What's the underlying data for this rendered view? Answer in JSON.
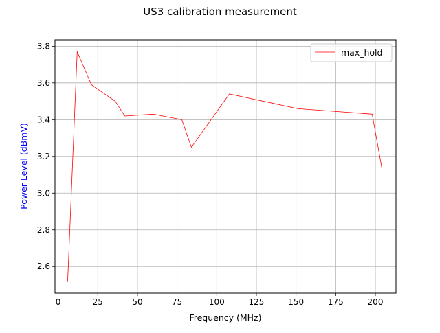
{
  "chart_data": {
    "type": "line",
    "title": "US3 calibration measurement",
    "xlabel": "Frequency (MHz)",
    "ylabel": "Power Level (dBmV)",
    "xlim": [
      -2,
      213
    ],
    "ylim": [
      2.455,
      3.835
    ],
    "xticks": [
      0,
      25,
      50,
      75,
      100,
      125,
      150,
      175,
      200
    ],
    "xtick_labels": [
      "0",
      "25",
      "50",
      "75",
      "100",
      "125",
      "150",
      "175",
      "200"
    ],
    "yticks": [
      2.6,
      2.8,
      3.0,
      3.2,
      3.4,
      3.6,
      3.8
    ],
    "ytick_labels": [
      "2.6",
      "2.8",
      "3.0",
      "3.2",
      "3.4",
      "3.6",
      "3.8"
    ],
    "grid": true,
    "legend_position": "top-right",
    "series": [
      {
        "name": "max_hold",
        "color": "#ff0000",
        "x": [
          6,
          12,
          21,
          36,
          42,
          60,
          78,
          84,
          108,
          151,
          198,
          204
        ],
        "y": [
          2.52,
          3.77,
          3.59,
          3.5,
          3.42,
          3.43,
          3.4,
          3.25,
          3.54,
          3.46,
          3.43,
          3.14
        ]
      }
    ]
  },
  "colors": {
    "ylabel": "#0000ff",
    "grid": "#b0b0b0",
    "axes": "#000000"
  }
}
